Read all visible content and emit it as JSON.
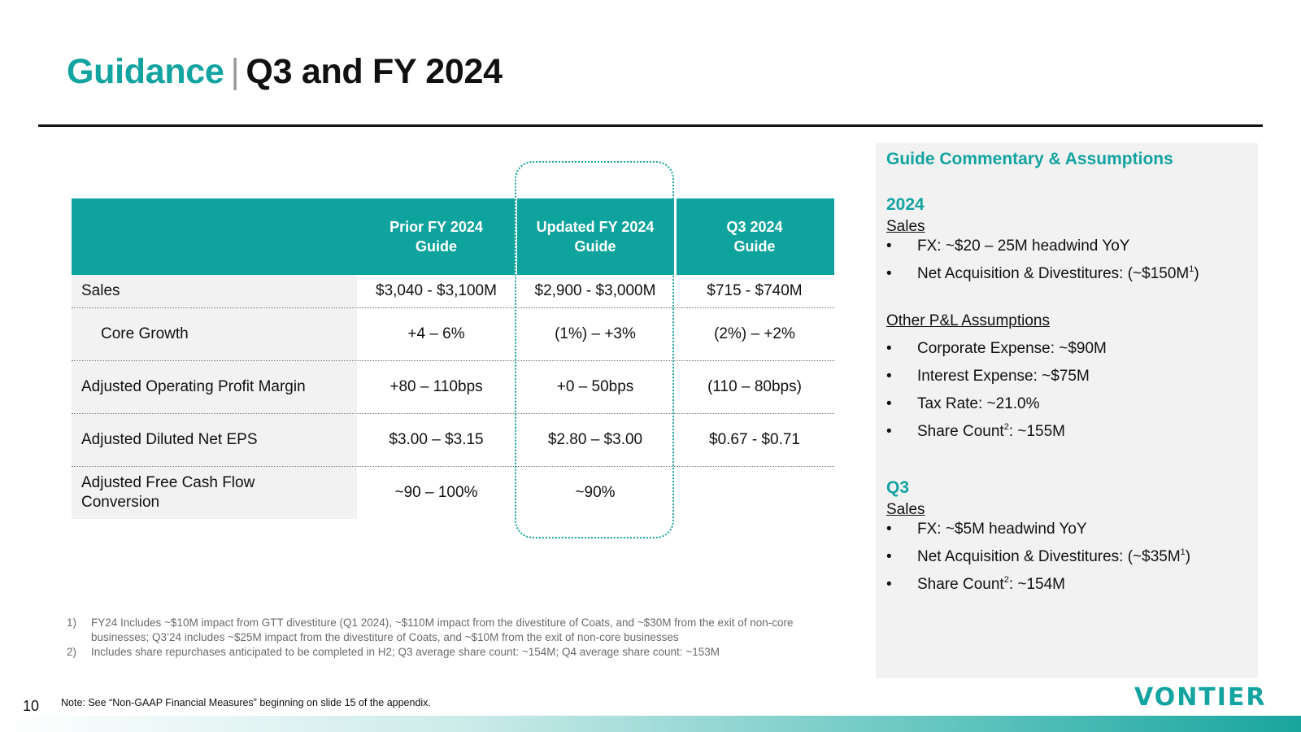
{
  "title": {
    "accent": "Guidance",
    "separator": "|",
    "main": "Q3 and FY 2024"
  },
  "table": {
    "headers": [
      "Prior FY 2024\nGuide",
      "Updated FY 2024\nGuide",
      "Q3 2024\nGuide"
    ],
    "rows": [
      {
        "label": "Sales",
        "values": [
          "$3,040 - $3,100M",
          "$2,900 - $3,000M",
          "$715 - $740M"
        ]
      },
      {
        "label": "Core Growth",
        "values": [
          "+4 – 6%",
          "(1%) – +3%",
          "(2%) – +2%"
        ]
      },
      {
        "label": "Adjusted Operating Profit Margin",
        "values": [
          "+80 – 110bps",
          "+0 – 50bps",
          "(110 – 80bps)"
        ]
      },
      {
        "label": "Adjusted Diluted Net EPS",
        "values": [
          "$3.00 – $3.15",
          "$2.80 – $3.00",
          "$0.67 - $0.71"
        ]
      },
      {
        "label": "Adjusted Free Cash Flow Conversion",
        "values": [
          "~90 – 100%",
          "~90%",
          ""
        ]
      }
    ]
  },
  "footnotes": [
    {
      "num": "1)",
      "text": "FY24 Includes ~$10M impact from GTT divestiture (Q1 2024), ~$110M impact from the divestiture of Coats, and ~$30M from the exit of non-core businesses; Q3’24 includes ~$25M impact from the divestiture of Coats, and ~$10M from the exit of non-core businesses"
    },
    {
      "num": "2)",
      "text": "Includes share repurchases anticipated to be completed in H2; Q3 average share count: ~154M; Q4 average share count: ~153M"
    }
  ],
  "panel": {
    "title": "Guide Commentary & Assumptions",
    "y2024": {
      "heading": "2024",
      "sales_label": "Sales",
      "fx": "FX: ~$20 – 25M headwind YoY",
      "net_acq_pre": "Net Acquisition & Divestitures: (~$150M",
      "net_acq_sup": "1",
      "net_acq_post": ")",
      "other_label": "Other P&L Assumptions",
      "corp": "Corporate Expense: ~$90M",
      "interest": "Interest Expense: ~$75M",
      "tax": "Tax Rate: ~21.0%",
      "share_pre": "Share Count",
      "share_sup": "2",
      "share_post": ": ~155M"
    },
    "q3": {
      "heading": "Q3",
      "sales_label": "Sales",
      "fx": "FX: ~$5M headwind YoY",
      "net_acq_pre": "Net Acquisition & Divestitures: (~$35M",
      "net_acq_sup": "1",
      "net_acq_post": ")",
      "share_pre": "Share Count",
      "share_sup": "2",
      "share_post": ": ~154M"
    },
    "bullet": "•"
  },
  "footer": {
    "page_number": "10",
    "note": "Note: See “Non-GAAP Financial Measures” beginning on slide 15 of the appendix.",
    "logo": "VONTIER"
  },
  "colors": {
    "accent": "#13A3A0",
    "header_bg": "#0FA39E",
    "label_bg": "#F2F2F2"
  }
}
